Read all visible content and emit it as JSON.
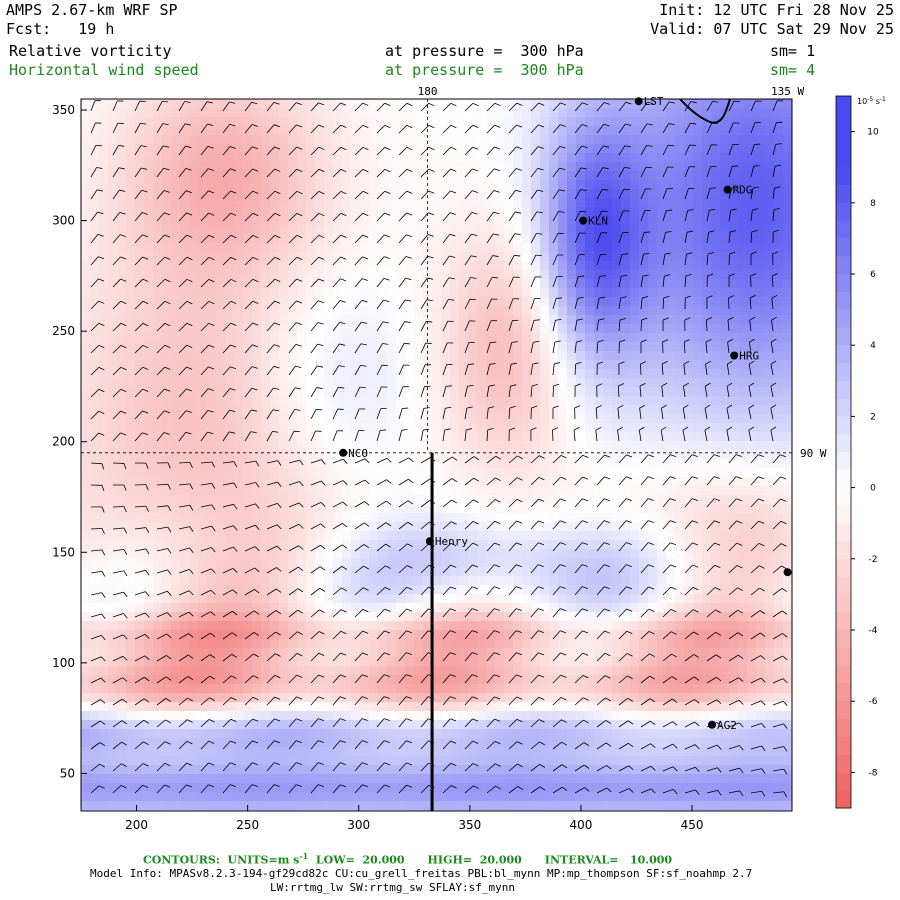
{
  "header": {
    "model": "AMPS 2.67-km WRF SP",
    "fcst": "Fcst:   19 h",
    "init": "Init: 12 UTC Fri 28 Nov 25",
    "valid": "Valid: 07 UTC Sat 29 Nov 25",
    "field1_name": "Relative vorticity",
    "field1_level": "at pressure =  300 hPa",
    "field1_sm": "sm= 1",
    "field2_name": "Horizontal wind speed",
    "field2_level": "at pressure =  300 hPa",
    "field2_sm": "sm= 4"
  },
  "footer": {
    "contours": "CONTOURS:  UNITS=m s",
    "contours_sup": "-1",
    "contours_rest": "  LOW=  20.000      HIGH=  20.000      INTERVAL=   10.000",
    "model_info": "Model Info: MPASv8.2.3-194-gf29cd82c CU:cu_grell_freitas PBL:bl_mynn MP:mp_thompson SF:sf_noahmp 2.7",
    "model_info2": "LW:rrtmg_lw SW:rrtmg_sw SFLAY:sf_mynn"
  },
  "colors": {
    "positive": "#4a4af0",
    "negative": "#f06060",
    "barb": "#000000"
  },
  "chart_data": {
    "type": "heatmap",
    "xlim": [
      175,
      495
    ],
    "ylim": [
      33,
      355
    ],
    "xticks": [
      200,
      250,
      300,
      350,
      400,
      450
    ],
    "yticks": [
      50,
      100,
      150,
      200,
      250,
      300,
      350
    ],
    "colorbar": {
      "unit_label": "10",
      "unit_sup": "-5",
      "unit_rest": " s",
      "unit_sup2": "-1",
      "range": [
        -9,
        11
      ],
      "ticks": [
        10,
        8,
        6,
        4,
        2,
        0,
        -2,
        -4,
        -6,
        -8
      ]
    },
    "meridians": [
      {
        "label": "180",
        "x": 331
      },
      {
        "label": "135 W",
        "x": 493
      }
    ],
    "parallels": [
      {
        "label": "90 W",
        "y": 195
      }
    ],
    "stations": [
      {
        "name": "LST",
        "x": 426,
        "y": 354
      },
      {
        "name": "RDG",
        "x": 466,
        "y": 314
      },
      {
        "name": "KLN",
        "x": 401,
        "y": 300
      },
      {
        "name": "HRG",
        "x": 469,
        "y": 239
      },
      {
        "name": "NCO",
        "x": 293,
        "y": 195
      },
      {
        "name": "Henry",
        "x": 332,
        "y": 155
      },
      {
        "name": "",
        "x": 493,
        "y": 141
      },
      {
        "name": "AG2",
        "x": 459,
        "y": 72
      }
    ],
    "section_line": {
      "x": 333,
      "y0": 33,
      "y1": 195
    }
  }
}
